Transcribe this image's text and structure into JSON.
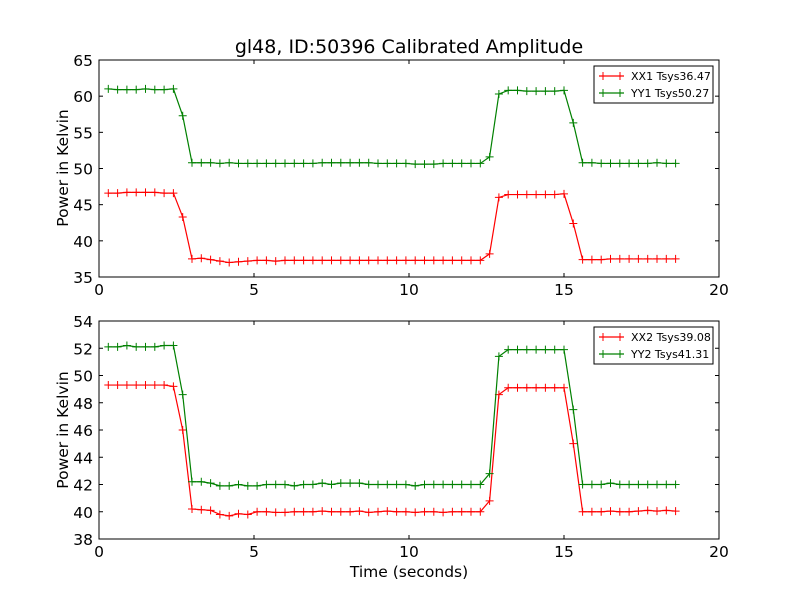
{
  "chart_data": [
    {
      "type": "line",
      "title": "gl48, ID:50396 Calibrated Amplitude",
      "xlabel": "",
      "ylabel": "Power in Kelvin",
      "xlim": [
        0,
        20
      ],
      "ylim": [
        35,
        65
      ],
      "xticks": [
        "0",
        "5",
        "10",
        "15",
        "20"
      ],
      "yticks": [
        "35",
        "40",
        "45",
        "50",
        "55",
        "60",
        "65"
      ],
      "xtick_values": [
        0,
        5,
        10,
        15,
        20
      ],
      "ytick_values": [
        35,
        40,
        45,
        50,
        55,
        60,
        65
      ],
      "legend_position": "top-right",
      "x_start": 0.3,
      "x_step": 0.3,
      "series": [
        {
          "name": "XX1 Tsys36.47",
          "color": "#ff0000",
          "values": [
            46.6,
            46.6,
            46.7,
            46.7,
            46.7,
            46.7,
            46.6,
            46.6,
            43.3,
            37.5,
            37.6,
            37.4,
            37.2,
            37.0,
            37.1,
            37.2,
            37.3,
            37.3,
            37.2,
            37.3,
            37.3,
            37.3,
            37.3,
            37.3,
            37.3,
            37.3,
            37.3,
            37.3,
            37.3,
            37.3,
            37.3,
            37.3,
            37.3,
            37.3,
            37.3,
            37.3,
            37.3,
            37.3,
            37.3,
            37.3,
            37.3,
            38.2,
            46.0,
            46.4,
            46.4,
            46.4,
            46.4,
            46.4,
            46.4,
            46.5,
            42.4,
            37.4,
            37.4,
            37.4,
            37.5,
            37.5,
            37.5,
            37.5,
            37.5,
            37.5,
            37.5,
            37.5
          ]
        },
        {
          "name": "YY1 Tsys50.27",
          "color": "#008000",
          "values": [
            61.0,
            60.9,
            60.9,
            60.9,
            61.0,
            60.9,
            60.9,
            61.0,
            57.3,
            50.8,
            50.8,
            50.8,
            50.7,
            50.8,
            50.7,
            50.7,
            50.7,
            50.7,
            50.7,
            50.7,
            50.7,
            50.7,
            50.7,
            50.8,
            50.8,
            50.8,
            50.8,
            50.8,
            50.8,
            50.7,
            50.7,
            50.7,
            50.7,
            50.6,
            50.6,
            50.6,
            50.7,
            50.7,
            50.7,
            50.7,
            50.7,
            51.6,
            60.3,
            60.8,
            60.8,
            60.7,
            60.7,
            60.7,
            60.7,
            60.8,
            56.3,
            50.8,
            50.8,
            50.7,
            50.7,
            50.7,
            50.7,
            50.7,
            50.7,
            50.8,
            50.7,
            50.7
          ]
        }
      ]
    },
    {
      "type": "line",
      "title": "",
      "xlabel": "Time (seconds)",
      "ylabel": "Power in Kelvin",
      "xlim": [
        0,
        20
      ],
      "ylim": [
        38,
        54
      ],
      "xticks": [
        "0",
        "5",
        "10",
        "15",
        "20"
      ],
      "yticks": [
        "38",
        "40",
        "42",
        "44",
        "46",
        "48",
        "50",
        "52",
        "54"
      ],
      "xtick_values": [
        0,
        5,
        10,
        15,
        20
      ],
      "ytick_values": [
        38,
        40,
        42,
        44,
        46,
        48,
        50,
        52,
        54
      ],
      "legend_position": "top-right",
      "x_start": 0.3,
      "x_step": 0.3,
      "series": [
        {
          "name": "XX2 Tsys39.08",
          "color": "#ff0000",
          "values": [
            49.3,
            49.3,
            49.3,
            49.3,
            49.3,
            49.3,
            49.3,
            49.2,
            46.0,
            40.2,
            40.15,
            40.1,
            39.8,
            39.7,
            39.85,
            39.8,
            40.0,
            40.0,
            39.95,
            39.95,
            40.0,
            40.0,
            40.0,
            40.05,
            40.0,
            40.0,
            40.0,
            40.05,
            39.95,
            40.0,
            40.05,
            40.0,
            40.0,
            39.95,
            40.0,
            40.0,
            39.95,
            40.0,
            40.0,
            40.0,
            40.0,
            40.8,
            48.6,
            49.1,
            49.1,
            49.1,
            49.1,
            49.1,
            49.1,
            49.1,
            45.0,
            40.0,
            40.0,
            40.0,
            40.05,
            40.0,
            40.0,
            40.05,
            40.1,
            40.05,
            40.1,
            40.05
          ]
        },
        {
          "name": "YY2 Tsys41.31",
          "color": "#008000",
          "values": [
            52.1,
            52.1,
            52.2,
            52.1,
            52.1,
            52.1,
            52.2,
            52.2,
            48.6,
            42.2,
            42.2,
            42.1,
            41.9,
            41.9,
            42.0,
            41.9,
            41.9,
            42.0,
            42.0,
            42.0,
            41.9,
            42.0,
            42.0,
            42.1,
            42.0,
            42.1,
            42.1,
            42.1,
            42.0,
            42.0,
            42.0,
            42.0,
            42.0,
            41.9,
            42.0,
            42.0,
            42.0,
            42.0,
            42.0,
            42.0,
            42.0,
            42.8,
            51.4,
            51.9,
            51.9,
            51.9,
            51.9,
            51.9,
            51.9,
            51.9,
            47.5,
            42.0,
            42.0,
            42.0,
            42.1,
            42.0,
            42.0,
            42.0,
            42.0,
            42.0,
            42.0,
            42.0
          ]
        }
      ]
    }
  ]
}
